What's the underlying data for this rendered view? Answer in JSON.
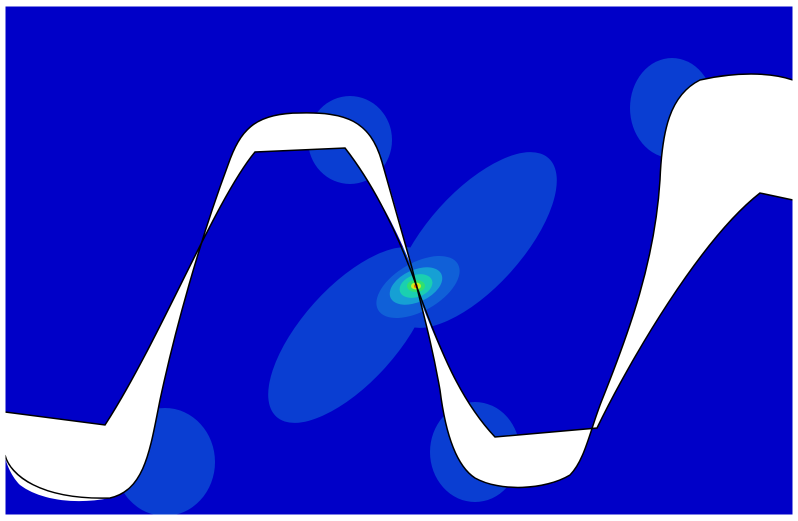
{
  "figure": {
    "kind": "finite-element stress contour of meshing gear teeth",
    "colormap": {
      "background": "#0000c8",
      "level_1": "#0a3ed2",
      "level_2": "#1060d8",
      "level_3": "#16a0d4",
      "level_4": "#1ad0b0",
      "level_5": "#30e070",
      "level_6": "#c8f020",
      "peak": "#ff6a00"
    },
    "tooth_fill": "#ffffff",
    "outline_color": "#000000",
    "contact_point_label": ""
  }
}
